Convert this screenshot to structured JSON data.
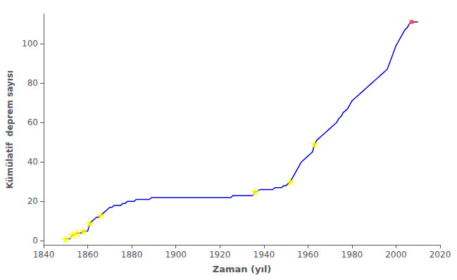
{
  "chart_data": {
    "type": "line",
    "xlabel": "Zaman (yıl)",
    "ylabel": "Kümülatif  deprem sayısı",
    "xlim": [
      1840,
      2020
    ],
    "ylim": [
      -2,
      115
    ],
    "xticks": [
      1840,
      1860,
      1880,
      1900,
      1920,
      1940,
      1960,
      1980,
      2000,
      2020
    ],
    "yticks": [
      0,
      20,
      40,
      60,
      80,
      100
    ],
    "grid": false,
    "series": [
      {
        "type": "line",
        "color": "#0000CC",
        "x": [
          1850,
          1851,
          1852,
          1853,
          1854,
          1855,
          1856,
          1857,
          1858,
          1859,
          1860,
          1861,
          1862,
          1863,
          1864,
          1865,
          1866,
          1867,
          1868,
          1869,
          1870,
          1871,
          1872,
          1873,
          1874,
          1875,
          1876,
          1877,
          1878,
          1879,
          1880,
          1881,
          1882,
          1883,
          1884,
          1885,
          1886,
          1887,
          1888,
          1889,
          1890,
          1891,
          1892,
          1893,
          1894,
          1895,
          1896,
          1897,
          1898,
          1899,
          1900,
          1901,
          1902,
          1903,
          1904,
          1905,
          1906,
          1907,
          1908,
          1909,
          1910,
          1911,
          1912,
          1913,
          1914,
          1915,
          1916,
          1917,
          1918,
          1919,
          1920,
          1921,
          1922,
          1923,
          1924,
          1925,
          1926,
          1927,
          1928,
          1929,
          1930,
          1931,
          1932,
          1933,
          1934,
          1935,
          1936,
          1937,
          1938,
          1939,
          1940,
          1941,
          1942,
          1943,
          1944,
          1945,
          1946,
          1947,
          1948,
          1949,
          1950,
          1951,
          1952,
          1953,
          1954,
          1955,
          1956,
          1957,
          1958,
          1959,
          1960,
          1961,
          1962,
          1963,
          1964,
          1965,
          1966,
          1967,
          1968,
          1969,
          1970,
          1971,
          1972,
          1973,
          1974,
          1975,
          1976,
          1977,
          1978,
          1979,
          1980,
          1981,
          1982,
          1983,
          1984,
          1985,
          1986,
          1987,
          1988,
          1989,
          1990,
          1991,
          1992,
          1993,
          1994,
          1995,
          1996,
          1997,
          1998,
          1999,
          2000,
          2001,
          2002,
          2003,
          2004,
          2005,
          2006,
          2007,
          2008,
          2009,
          2010
        ],
        "values": [
          1,
          1,
          1,
          3,
          3,
          4,
          4,
          4,
          5,
          5,
          5,
          9,
          10,
          11,
          12,
          12,
          13,
          14,
          15,
          16,
          17,
          17,
          18,
          18,
          18,
          18,
          19,
          19,
          20,
          20,
          20,
          20,
          21,
          21,
          21,
          21,
          21,
          21,
          21,
          22,
          22,
          22,
          22,
          22,
          22,
          22,
          22,
          22,
          22,
          22,
          22,
          22,
          22,
          22,
          22,
          22,
          22,
          22,
          22,
          22,
          22,
          22,
          22,
          22,
          22,
          22,
          22,
          22,
          22,
          22,
          22,
          22,
          22,
          22,
          22,
          22,
          23,
          23,
          23,
          23,
          23,
          23,
          23,
          23,
          23,
          23,
          25,
          25,
          26,
          26,
          26,
          26,
          26,
          26,
          26,
          27,
          27,
          27,
          27,
          28,
          28,
          29,
          30,
          32,
          34,
          36,
          38,
          40,
          41,
          42,
          43,
          44,
          45,
          49,
          51,
          52,
          53,
          54,
          55,
          56,
          57,
          58,
          59,
          60,
          62,
          63,
          65,
          66,
          67,
          69,
          71,
          72,
          73,
          74,
          75,
          76,
          77,
          78,
          79,
          80,
          81,
          82,
          83,
          84,
          85,
          86,
          87,
          90,
          93,
          96,
          99,
          101,
          103,
          105,
          107,
          108,
          110,
          111,
          111,
          111,
          111
        ]
      },
      {
        "type": "scatter",
        "marker": "star",
        "color": "#FFFF00",
        "x": [
          1850,
          1853,
          1855,
          1858,
          1861,
          1866,
          1936,
          1952,
          1963
        ],
        "values": [
          1,
          3,
          4,
          5,
          9,
          13,
          25,
          30,
          49
        ]
      },
      {
        "type": "scatter",
        "marker": "square",
        "color": "#FF4444",
        "x": [
          2007
        ],
        "values": [
          111
        ]
      }
    ]
  }
}
